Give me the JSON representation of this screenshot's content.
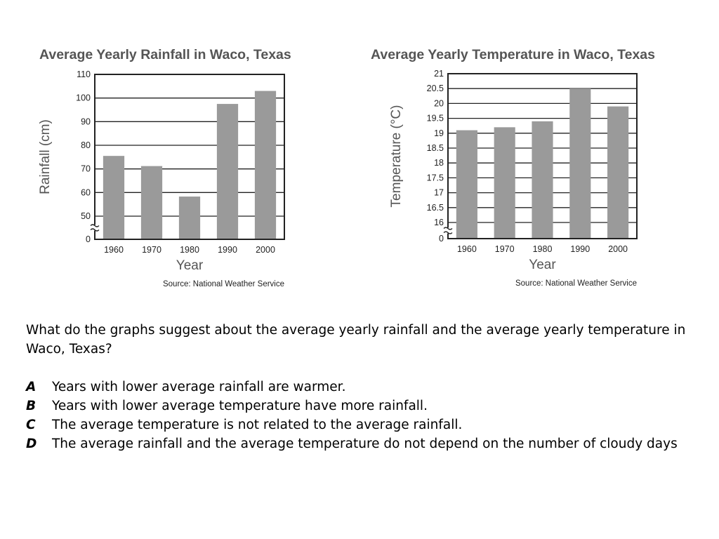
{
  "chart_data": [
    {
      "type": "bar",
      "title": "Average Yearly Rainfall in Waco, Texas",
      "categories": [
        "1960",
        "1970",
        "1980",
        "1990",
        "2000"
      ],
      "values": [
        75.5,
        71.2,
        58.3,
        97.5,
        103
      ],
      "xlabel": "Year",
      "ylabel": "Rainfall (cm)",
      "ylim": [
        0,
        110
      ],
      "axis_break": [
        0,
        50
      ],
      "yticks": [
        50,
        60,
        70,
        80,
        90,
        100,
        110
      ],
      "ytick_labels": [
        "50",
        "60",
        "70",
        "80",
        "90",
        "100",
        "110"
      ],
      "zero_label": "0",
      "grid": true,
      "source": "Source: National Weather Service",
      "bar_color": "#9a9a9a"
    },
    {
      "type": "bar",
      "title": "Average Yearly Temperature in Waco, Texas",
      "categories": [
        "1960",
        "1970",
        "1980",
        "1990",
        "2000"
      ],
      "values": [
        19.1,
        19.2,
        19.4,
        20.5,
        19.9
      ],
      "xlabel": "Year",
      "ylabel": "Temperature (°C)",
      "ylim": [
        0,
        21
      ],
      "axis_break": [
        0,
        16
      ],
      "yticks": [
        16,
        16.5,
        17,
        17.5,
        18,
        18.5,
        19,
        19.5,
        20,
        20.5,
        21
      ],
      "ytick_labels": [
        "16",
        "16.5",
        "17",
        "17.5",
        "18",
        "18.5",
        "19",
        "19.5",
        "20",
        "20.5",
        "21"
      ],
      "zero_label": "0",
      "grid": true,
      "source": "Source: National Weather Service",
      "bar_color": "#9a9a9a"
    }
  ],
  "question": {
    "text": "What do the graphs suggest about the average yearly rainfall and the average yearly temperature in Waco, Texas?",
    "options": [
      {
        "letter": "A",
        "text": "Years with lower average rainfall are warmer."
      },
      {
        "letter": "B",
        "text": "Years with lower average temperature have more rainfall."
      },
      {
        "letter": "C",
        "text": "The average temperature is not related to the average rainfall."
      },
      {
        "letter": "D",
        "text": "The average rainfall and the average temperature do not depend on the number of cloudy days"
      }
    ]
  }
}
